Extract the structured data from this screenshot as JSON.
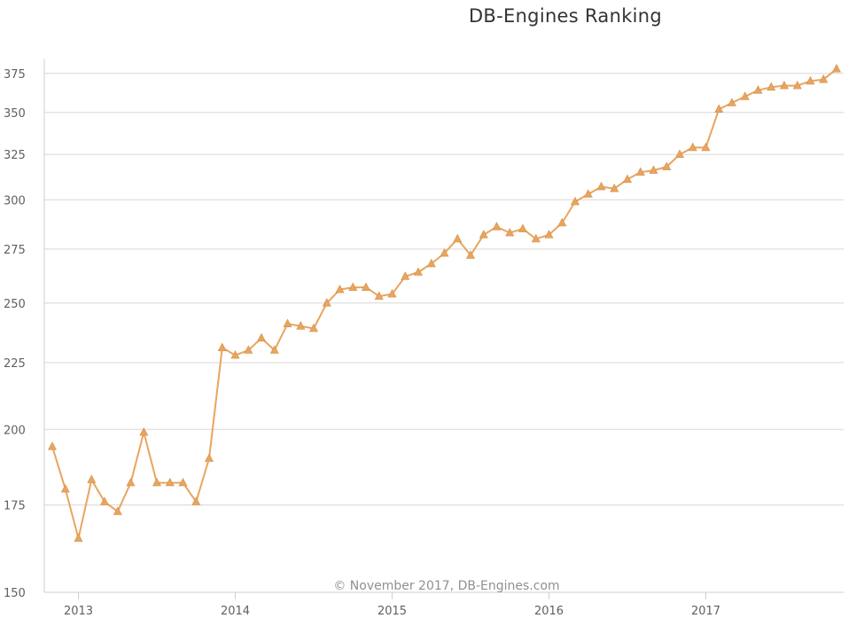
{
  "chart_data": {
    "type": "line",
    "title": "DB-Engines Ranking",
    "credit": "© November 2017, DB-Engines.com",
    "xlabel": "",
    "ylabel": "",
    "y_scale": "log",
    "ylim": [
      150,
      385
    ],
    "y_ticks": [
      150,
      175,
      200,
      225,
      250,
      275,
      300,
      325,
      350,
      375
    ],
    "x_ticks": [
      "2013",
      "2014",
      "2015",
      "2016",
      "2017"
    ],
    "x_start": "2012-11",
    "x_end": "2017-11",
    "grid": true,
    "legend": "none",
    "series": [
      {
        "color": "#e8a55e",
        "marker": "triangle",
        "x": [
          "2012-11",
          "2012-12",
          "2013-01",
          "2013-02",
          "2013-03",
          "2013-04",
          "2013-05",
          "2013-06",
          "2013-07",
          "2013-08",
          "2013-09",
          "2013-10",
          "2013-11",
          "2013-12",
          "2014-01",
          "2014-02",
          "2014-03",
          "2014-04",
          "2014-05",
          "2014-06",
          "2014-07",
          "2014-08",
          "2014-09",
          "2014-10",
          "2014-11",
          "2014-12",
          "2015-01",
          "2015-02",
          "2015-03",
          "2015-04",
          "2015-05",
          "2015-06",
          "2015-07",
          "2015-08",
          "2015-09",
          "2015-10",
          "2015-11",
          "2015-12",
          "2016-01",
          "2016-02",
          "2016-03",
          "2016-04",
          "2016-05",
          "2016-06",
          "2016-07",
          "2016-08",
          "2016-09",
          "2016-10",
          "2016-11",
          "2016-12",
          "2017-01",
          "2017-02",
          "2017-03",
          "2017-04",
          "2017-05",
          "2017-06",
          "2017-07",
          "2017-08",
          "2017-09",
          "2017-10",
          "2017-11"
        ],
        "values": [
          194,
          180,
          165,
          183,
          176,
          173,
          182,
          199,
          182,
          182,
          182,
          176,
          190,
          231,
          228,
          230,
          235,
          230,
          241,
          240,
          239,
          250,
          256,
          257,
          257,
          253,
          254,
          262,
          264,
          268,
          273,
          280,
          272,
          282,
          286,
          283,
          285,
          280,
          282,
          288,
          299,
          303,
          307,
          306,
          311,
          315,
          316,
          318,
          325,
          329,
          329,
          352,
          356,
          360,
          364,
          366,
          367,
          367,
          370,
          371,
          378
        ]
      }
    ]
  }
}
